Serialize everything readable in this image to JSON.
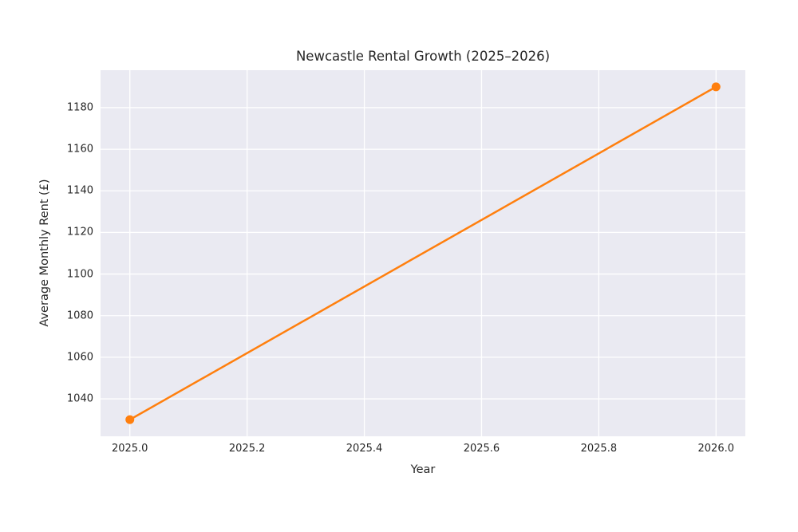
{
  "chart_data": {
    "type": "line",
    "title": "Newcastle Rental Growth (2025–2026)",
    "xlabel": "Year",
    "ylabel": "Average Monthly Rent (£)",
    "x": [
      2025,
      2026
    ],
    "series": [
      {
        "name": "average_monthly_rent",
        "values": [
          1030,
          1190
        ]
      }
    ],
    "xlim": [
      2024.95,
      2026.05
    ],
    "ylim": [
      1022,
      1198
    ],
    "xticks": {
      "values": [
        2025.0,
        2025.2,
        2025.4,
        2025.6,
        2025.8,
        2026.0
      ],
      "labels": [
        "2025.0",
        "2025.2",
        "2025.4",
        "2025.6",
        "2025.8",
        "2026.0"
      ]
    },
    "yticks": {
      "values": [
        1040,
        1060,
        1080,
        1100,
        1120,
        1140,
        1160,
        1180
      ],
      "labels": [
        "1040",
        "1060",
        "1080",
        "1100",
        "1120",
        "1140",
        "1160",
        "1180"
      ]
    },
    "grid": true,
    "legend": "none",
    "style": {
      "line_color": "#ff7f0e",
      "marker": "circle",
      "marker_radius": 5.5,
      "line_width": 2.5,
      "plot_background": "#eaeaf2",
      "grid_color": "#ffffff",
      "figure_background": "#ffffff",
      "text_color": "#262626"
    }
  }
}
